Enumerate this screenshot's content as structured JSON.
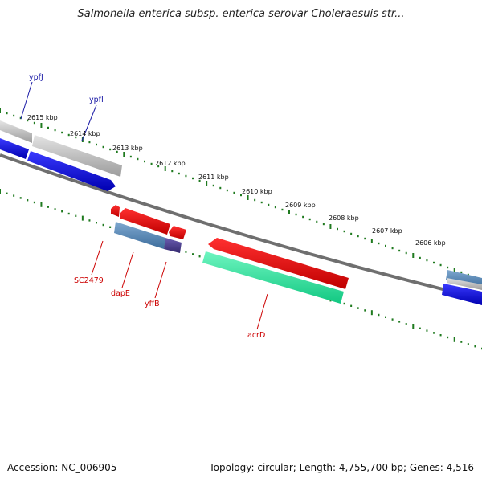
{
  "title": "Salmonella enterica subsp. enterica serovar Choleraesuis str...",
  "footer": {
    "accession": "Accession: NC_006905",
    "summary": "Topology: circular; Length: 4,755,700 bp; Genes: 4,516"
  },
  "scale_ticks": [
    "2615 kbp",
    "2614 kbp",
    "2613 kbp",
    "2612 kbp",
    "2611 kbp",
    "2610 kbp",
    "2609 kbp",
    "2608 kbp",
    "2607 kbp",
    "2606 kbp"
  ],
  "genes": [
    {
      "name": "ypfJ",
      "strand": "forward",
      "color": "#1a1aa6"
    },
    {
      "name": "ypfI",
      "strand": "forward",
      "color": "#1a1aa6"
    },
    {
      "name": "SC2479",
      "strand": "reverse",
      "color": "#cc0000"
    },
    {
      "name": "dapE",
      "strand": "reverse",
      "color": "#cc0000"
    },
    {
      "name": "yffB",
      "strand": "reverse",
      "color": "#cc0000"
    },
    {
      "name": "acrD",
      "strand": "reverse",
      "color": "#cc0000"
    }
  ],
  "colors": {
    "backbone": "#7a7a7a",
    "tick": "#1f7a1f",
    "cds_forward": "#0000dd",
    "cds_reverse": "#ee0000",
    "orf_grey": "#b8b8b8",
    "steelblue": "#4a7fb0",
    "purple": "#4b3f8a",
    "green": "#22e39a"
  }
}
